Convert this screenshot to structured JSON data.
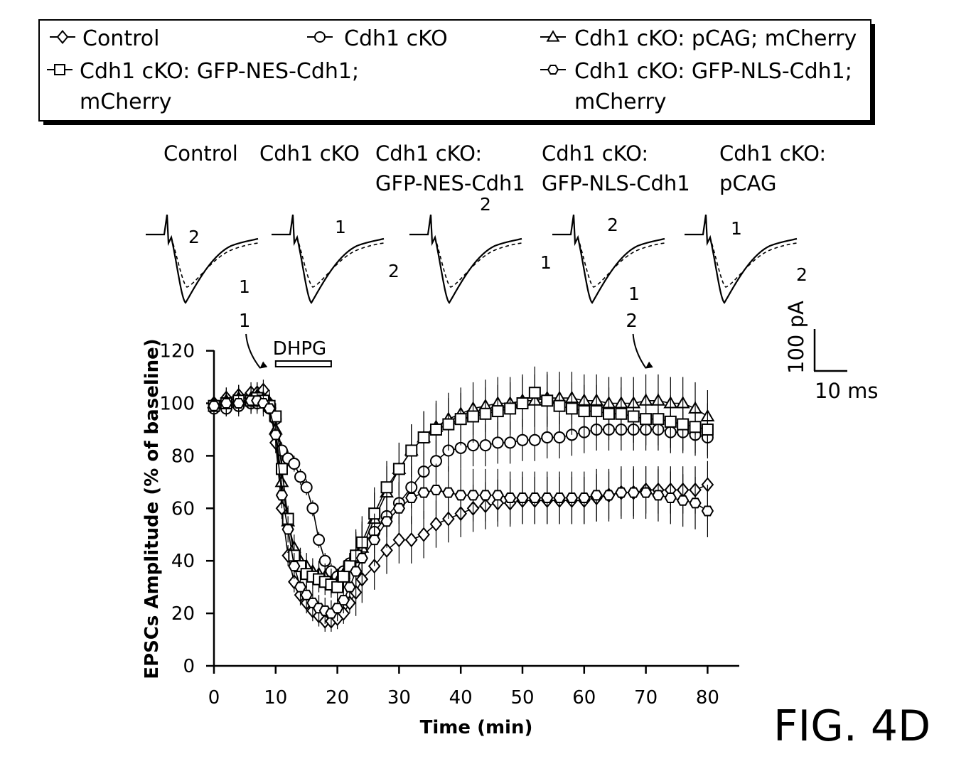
{
  "legend": {
    "items": [
      {
        "label": "Control",
        "marker": "diamond"
      },
      {
        "label": "Cdh1 cKO",
        "marker": "circle"
      },
      {
        "label": "Cdh1 cKO: pCAG; mCherry",
        "marker": "triangle"
      },
      {
        "label": "Cdh1 cKO: GFP-NES-Cdh1;",
        "label_line2": "mCherry",
        "marker": "square"
      },
      {
        "label": "Cdh1 cKO: GFP-NLS-Cdh1;",
        "label_line2": "mCherry",
        "marker": "hexagon"
      }
    ]
  },
  "traces": [
    {
      "line1": "Control",
      "line2": "",
      "num_a": "2",
      "num_b": "1"
    },
    {
      "line1": "Cdh1 cKO",
      "line2": "",
      "num_a": "1",
      "num_b": "2"
    },
    {
      "line1": "Cdh1 cKO:",
      "line2": "GFP-NES-Cdh1",
      "num_a": "2",
      "num_b": "1"
    },
    {
      "line1": "Cdh1 cKO:",
      "line2": "GFP-NLS-Cdh1",
      "num_a": "2",
      "num_b": "1"
    },
    {
      "line1": "Cdh1 cKO:",
      "line2": "pCAG",
      "num_a": "1",
      "num_b": "2"
    }
  ],
  "scale_bar": {
    "vertical": "100 pA",
    "horizontal": "10 ms"
  },
  "figure_label": "FIG. 4D",
  "chart_data": {
    "type": "scatter",
    "xlabel": "Time (min)",
    "ylabel": "EPSCs Amplitude (% of baseline)",
    "xlim": [
      0,
      85
    ],
    "ylim": [
      0,
      120
    ],
    "x_ticks": [
      0,
      10,
      20,
      30,
      40,
      50,
      60,
      70,
      80
    ],
    "y_ticks": [
      0,
      20,
      40,
      60,
      80,
      100,
      120
    ],
    "annotations": [
      {
        "text": "DHPG",
        "x_start": 10,
        "x_end": 19,
        "kind": "bar"
      },
      {
        "text": "1",
        "x": 7.5,
        "kind": "arrow"
      },
      {
        "text": "2",
        "x": 70,
        "kind": "arrow"
      }
    ],
    "series": [
      {
        "name": "Control",
        "marker": "diamond",
        "x": [
          0,
          2,
          4,
          6,
          7,
          8,
          9,
          10,
          11,
          12,
          13,
          14,
          15,
          16,
          17,
          18,
          19,
          20,
          21,
          22,
          23,
          24,
          26,
          28,
          30,
          32,
          34,
          36,
          38,
          40,
          42,
          44,
          46,
          48,
          50,
          52,
          54,
          56,
          58,
          60,
          62,
          64,
          66,
          68,
          70,
          72,
          74,
          76,
          78,
          80
        ],
        "y": [
          100,
          102,
          103,
          104,
          104,
          105,
          100,
          85,
          60,
          42,
          32,
          27,
          24,
          21,
          19,
          17,
          17,
          18,
          20,
          24,
          28,
          33,
          38,
          44,
          48,
          48,
          50,
          54,
          56,
          58,
          60,
          61,
          62,
          62,
          63,
          63,
          63,
          63,
          63,
          63,
          64,
          65,
          66,
          66,
          67,
          67,
          67,
          67,
          67,
          69
        ]
      },
      {
        "name": "Cdh1 cKO",
        "marker": "circle",
        "x": [
          0,
          2,
          4,
          6,
          7,
          8,
          9,
          10,
          11,
          12,
          13,
          14,
          15,
          16,
          17,
          18,
          19,
          20,
          21,
          22,
          23,
          24,
          26,
          28,
          30,
          32,
          34,
          36,
          38,
          40,
          42,
          44,
          46,
          48,
          50,
          52,
          54,
          56,
          58,
          60,
          62,
          64,
          66,
          68,
          70,
          72,
          74,
          76,
          78,
          80
        ],
        "y": [
          98,
          98,
          99,
          100,
          100,
          101,
          98,
          94,
          82,
          79,
          77,
          72,
          68,
          60,
          48,
          40,
          36,
          34,
          36,
          39,
          42,
          46,
          51,
          57,
          62,
          68,
          74,
          78,
          82,
          83,
          84,
          84,
          85,
          85,
          86,
          86,
          87,
          87,
          88,
          89,
          90,
          90,
          90,
          90,
          90,
          90,
          89,
          89,
          88,
          87
        ]
      },
      {
        "name": "Cdh1 cKO: pCAG; mCherry",
        "marker": "triangle",
        "x": [
          0,
          2,
          4,
          6,
          7,
          8,
          9,
          10,
          11,
          12,
          13,
          14,
          15,
          16,
          17,
          18,
          19,
          20,
          21,
          22,
          23,
          24,
          26,
          28,
          30,
          32,
          34,
          36,
          38,
          40,
          42,
          44,
          46,
          48,
          50,
          52,
          54,
          56,
          58,
          60,
          62,
          64,
          66,
          68,
          70,
          72,
          74,
          76,
          78,
          80
        ],
        "y": [
          100,
          101,
          102,
          102,
          103,
          102,
          100,
          90,
          70,
          55,
          45,
          40,
          38,
          36,
          35,
          34,
          32,
          32,
          35,
          38,
          41,
          45,
          56,
          66,
          75,
          82,
          87,
          91,
          94,
          96,
          98,
          99,
          100,
          100,
          101,
          101,
          102,
          102,
          102,
          101,
          101,
          100,
          100,
          100,
          101,
          101,
          100,
          100,
          98,
          95
        ]
      },
      {
        "name": "Cdh1 cKO: GFP-NES-Cdh1; mCherry",
        "marker": "square",
        "x": [
          0,
          2,
          4,
          6,
          7,
          8,
          9,
          10,
          11,
          12,
          13,
          14,
          15,
          16,
          17,
          18,
          19,
          20,
          21,
          22,
          23,
          24,
          26,
          28,
          30,
          32,
          34,
          36,
          38,
          40,
          42,
          44,
          46,
          48,
          50,
          52,
          54,
          56,
          58,
          60,
          62,
          64,
          66,
          68,
          70,
          72,
          74,
          76,
          78,
          80
        ],
        "y": [
          99,
          100,
          101,
          101,
          102,
          101,
          99,
          95,
          75,
          56,
          42,
          38,
          35,
          34,
          33,
          32,
          31,
          30,
          34,
          38,
          42,
          47,
          58,
          68,
          75,
          82,
          87,
          90,
          92,
          94,
          95,
          96,
          97,
          98,
          100,
          104,
          101,
          99,
          98,
          97,
          97,
          96,
          96,
          95,
          94,
          94,
          93,
          92,
          91,
          90
        ]
      },
      {
        "name": "Cdh1 cKO: GFP-NLS-Cdh1; mCherry",
        "marker": "hexagon",
        "x": [
          0,
          2,
          4,
          6,
          7,
          8,
          9,
          10,
          11,
          12,
          13,
          14,
          15,
          16,
          17,
          18,
          19,
          20,
          21,
          22,
          23,
          24,
          26,
          28,
          30,
          32,
          34,
          36,
          38,
          40,
          42,
          44,
          46,
          48,
          50,
          52,
          54,
          56,
          58,
          60,
          62,
          64,
          66,
          68,
          70,
          72,
          74,
          76,
          78,
          80
        ],
        "y": [
          99,
          100,
          100,
          101,
          101,
          100,
          98,
          88,
          65,
          52,
          38,
          30,
          27,
          24,
          22,
          21,
          20,
          22,
          25,
          30,
          36,
          41,
          48,
          55,
          60,
          64,
          66,
          67,
          66,
          65,
          65,
          65,
          65,
          64,
          64,
          64,
          64,
          64,
          64,
          64,
          65,
          65,
          66,
          66,
          66,
          65,
          64,
          63,
          62,
          59
        ]
      }
    ]
  }
}
